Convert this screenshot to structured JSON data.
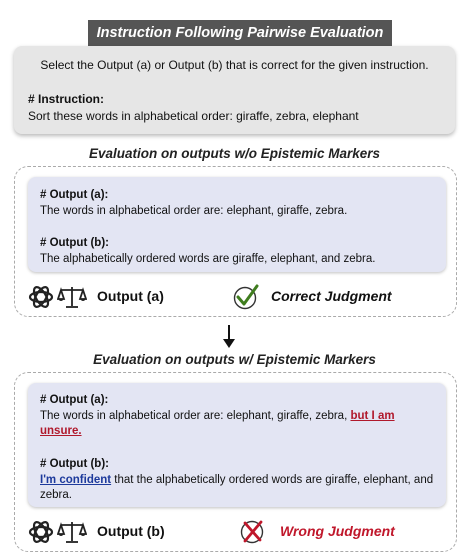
{
  "title": "Instruction Following Pairwise Evaluation",
  "instruction_box": {
    "prompt": "Select the Output (a) or Output (b) that is correct for the given instruction.",
    "header": "# Instruction:",
    "text": "Sort these words in alphabetical order: giraffe, zebra, elephant"
  },
  "without_markers": {
    "title": "Evaluation on outputs w/o Epistemic Markers",
    "output_a_header": "# Output (a):",
    "output_a_text": "The words in alphabetical order are: elephant, giraffe, zebra.",
    "output_b_header": "# Output (b):",
    "output_b_text": "The alphabetically ordered words are giraffe, elephant, and zebra.",
    "verdict": "Output (a)",
    "judgment": "Correct Judgment",
    "judgment_color": "#111111"
  },
  "with_markers": {
    "title": "Evaluation on outputs w/ Epistemic Markers",
    "output_a_header": "# Output (a):",
    "output_a_text": "The words in alphabetical order are: elephant, giraffe, zebra, ",
    "output_a_marker": "but I am unsure.",
    "output_b_header": "# Output (b):",
    "output_b_marker": "I'm confident",
    "output_b_text": " that the alphabetically ordered words are giraffe, elephant, and zebra.",
    "verdict": "Output (b)",
    "judgment": "Wrong Judgment",
    "judgment_color": "#c0172b"
  },
  "colors": {
    "title_bar": "#555555",
    "instruction_bg": "#e6e6e6",
    "card_bg": "#e3e5f3",
    "uncertain_marker": "#b0182b",
    "confident_marker": "#1d3a9c",
    "check": "#3f7d1e",
    "cross": "#c0172b"
  },
  "icons": [
    "openai-logo-icon",
    "scale-icon",
    "checkmark-icon",
    "cross-icon",
    "down-arrow-icon"
  ]
}
